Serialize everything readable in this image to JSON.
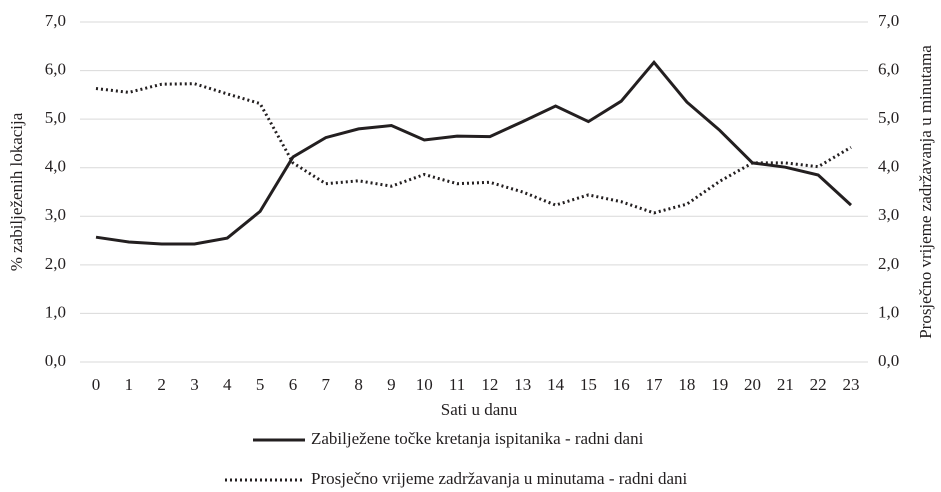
{
  "chart_data": {
    "type": "line",
    "x_label": "Sati u danu",
    "y_label": "% zabilježenih lokacija",
    "y2_label": "Prosječno vrijeme zadržavanja u minutama",
    "categories": [
      "0",
      "1",
      "2",
      "3",
      "4",
      "5",
      "6",
      "7",
      "8",
      "9",
      "10",
      "11",
      "12",
      "13",
      "14",
      "15",
      "16",
      "17",
      "18",
      "19",
      "20",
      "21",
      "22",
      "23"
    ],
    "series": [
      {
        "name": "Zabilježene točke kretanja ispitanika - radni dani",
        "color": "#231f20",
        "style": "solid",
        "values": [
          2.57,
          2.47,
          2.43,
          2.43,
          2.55,
          3.1,
          4.22,
          4.62,
          4.8,
          4.87,
          4.57,
          4.65,
          4.64,
          4.95,
          5.27,
          4.95,
          5.37,
          6.17,
          5.35,
          4.77,
          4.1,
          4.01,
          3.85,
          3.23
        ]
      },
      {
        "name": "Prosječno vrijeme zadržavanja u minutama - radni dani",
        "color": "#231f20",
        "style": "dotted",
        "axis": "y2",
        "values": [
          5.63,
          5.55,
          5.72,
          5.73,
          5.52,
          5.32,
          4.1,
          3.67,
          3.73,
          3.62,
          3.86,
          3.67,
          3.7,
          3.5,
          3.23,
          3.44,
          3.3,
          3.07,
          3.25,
          3.72,
          4.1,
          4.1,
          4.02,
          4.42
        ]
      }
    ],
    "ylim": [
      0,
      7
    ],
    "yticks": [
      {
        "value": 0,
        "label": "0,0"
      },
      {
        "value": 1,
        "label": "1,0"
      },
      {
        "value": 2,
        "label": "2,0"
      },
      {
        "value": 3,
        "label": "3,0"
      },
      {
        "value": 4,
        "label": "4,0"
      },
      {
        "value": 5,
        "label": "5,0"
      },
      {
        "value": 6,
        "label": "6,0"
      },
      {
        "value": 7,
        "label": "7,0"
      }
    ],
    "y2lim": [
      0,
      7
    ],
    "y2ticks": [
      {
        "value": 0,
        "label": "0,0"
      },
      {
        "value": 1,
        "label": "1,0"
      },
      {
        "value": 2,
        "label": "2,0"
      },
      {
        "value": 3,
        "label": "3,0"
      },
      {
        "value": 4,
        "label": "4,0"
      },
      {
        "value": 5,
        "label": "5,0"
      },
      {
        "value": 6,
        "label": "6,0"
      },
      {
        "value": 7,
        "label": "7,0"
      }
    ],
    "grid": true
  }
}
